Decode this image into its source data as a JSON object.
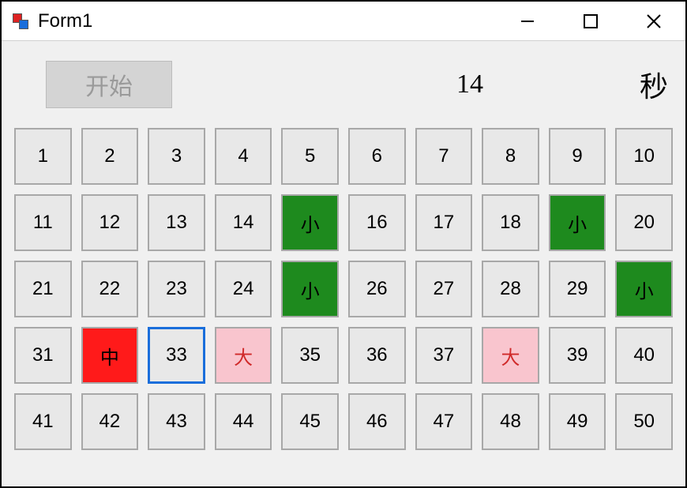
{
  "window": {
    "title": "Form1"
  },
  "controls": {
    "start_label": "开始",
    "timer_value": "14",
    "seconds_label": "秒"
  },
  "colors": {
    "window_bg": "#f0f0f0",
    "cell_bg": "#e8e8e8",
    "cell_border": "#a8a8a8",
    "green": "#1e8a1e",
    "red": "#ff1a1a",
    "pink": "#f9c5ce",
    "blue_border": "#1a6edb",
    "start_btn_bg": "#d4d4d4",
    "start_btn_text": "#9a9a9a"
  },
  "grid": {
    "cols": 10,
    "rows": 5,
    "cells": [
      {
        "label": "1",
        "style": "normal"
      },
      {
        "label": "2",
        "style": "normal"
      },
      {
        "label": "3",
        "style": "normal"
      },
      {
        "label": "4",
        "style": "normal"
      },
      {
        "label": "5",
        "style": "normal"
      },
      {
        "label": "6",
        "style": "normal"
      },
      {
        "label": "7",
        "style": "normal"
      },
      {
        "label": "8",
        "style": "normal"
      },
      {
        "label": "9",
        "style": "normal"
      },
      {
        "label": "10",
        "style": "normal"
      },
      {
        "label": "11",
        "style": "normal"
      },
      {
        "label": "12",
        "style": "normal"
      },
      {
        "label": "13",
        "style": "normal"
      },
      {
        "label": "14",
        "style": "normal"
      },
      {
        "label": "小",
        "style": "green"
      },
      {
        "label": "16",
        "style": "normal"
      },
      {
        "label": "17",
        "style": "normal"
      },
      {
        "label": "18",
        "style": "normal"
      },
      {
        "label": "小",
        "style": "green"
      },
      {
        "label": "20",
        "style": "normal"
      },
      {
        "label": "21",
        "style": "normal"
      },
      {
        "label": "22",
        "style": "normal"
      },
      {
        "label": "23",
        "style": "normal"
      },
      {
        "label": "24",
        "style": "normal"
      },
      {
        "label": "小",
        "style": "green"
      },
      {
        "label": "26",
        "style": "normal"
      },
      {
        "label": "27",
        "style": "normal"
      },
      {
        "label": "28",
        "style": "normal"
      },
      {
        "label": "29",
        "style": "normal"
      },
      {
        "label": "小",
        "style": "green"
      },
      {
        "label": "31",
        "style": "normal"
      },
      {
        "label": "中",
        "style": "red"
      },
      {
        "label": "33",
        "style": "blueborder"
      },
      {
        "label": "大",
        "style": "pink"
      },
      {
        "label": "35",
        "style": "normal"
      },
      {
        "label": "36",
        "style": "normal"
      },
      {
        "label": "37",
        "style": "normal"
      },
      {
        "label": "大",
        "style": "pink"
      },
      {
        "label": "39",
        "style": "normal"
      },
      {
        "label": "40",
        "style": "normal"
      },
      {
        "label": "41",
        "style": "normal"
      },
      {
        "label": "42",
        "style": "normal"
      },
      {
        "label": "43",
        "style": "normal"
      },
      {
        "label": "44",
        "style": "normal"
      },
      {
        "label": "45",
        "style": "normal"
      },
      {
        "label": "46",
        "style": "normal"
      },
      {
        "label": "47",
        "style": "normal"
      },
      {
        "label": "48",
        "style": "normal"
      },
      {
        "label": "49",
        "style": "normal"
      },
      {
        "label": "50",
        "style": "normal"
      }
    ]
  }
}
